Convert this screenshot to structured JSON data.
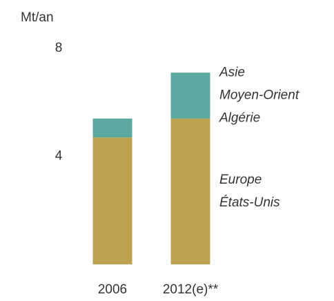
{
  "chart_data": {
    "type": "stacked_bar",
    "y_label": "Mt/an",
    "categories": [
      "2006",
      "2012(e)**"
    ],
    "series": [
      {
        "name_lines": [
          "Europe",
          "États-Unis"
        ],
        "color": "#bda24f",
        "values": [
          4.7,
          5.4
        ]
      },
      {
        "name_lines": [
          "Asie",
          "Moyen-Orient",
          "Algérie"
        ],
        "color": "#5aa8a0",
        "values": [
          0.7,
          1.7
        ]
      }
    ],
    "ylim": [
      0,
      8
    ],
    "yticks": [
      4,
      8
    ],
    "grid": false
  }
}
